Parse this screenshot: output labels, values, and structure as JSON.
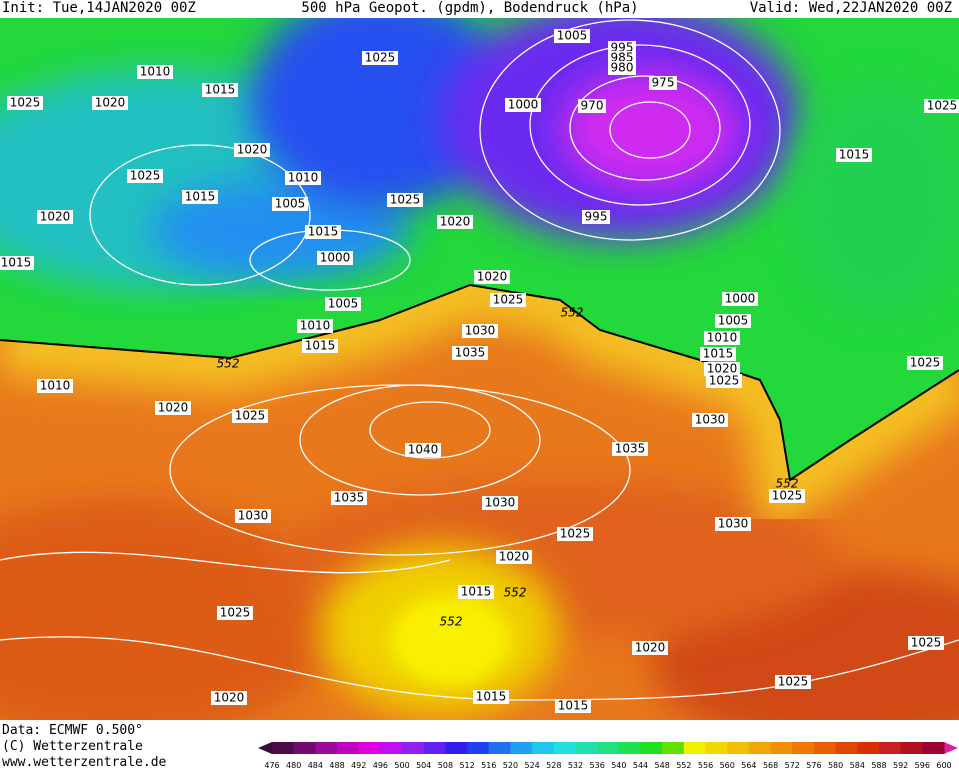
{
  "header": {
    "init": "Init: Tue,14JAN2020 00Z",
    "title": "500 hPa Geopot. (gpdm), Bodendruck (hPa)",
    "valid": "Valid: Wed,22JAN2020 00Z"
  },
  "footer": {
    "data": "Data: ECMWF   0.500°",
    "copyright": "(C) Wetterzentrale",
    "url": "www.wetterzentrale.de"
  },
  "legend": {
    "labels": [
      476,
      480,
      484,
      488,
      492,
      496,
      500,
      504,
      508,
      512,
      516,
      520,
      524,
      528,
      532,
      536,
      540,
      544,
      548,
      552,
      556,
      560,
      564,
      568,
      572,
      576,
      580,
      584,
      588,
      592,
      596,
      600
    ]
  },
  "isobar_labels": [
    1010,
    1025,
    1020,
    1015,
    1025,
    1005,
    995,
    985,
    980,
    975,
    970,
    1000,
    1025,
    1020,
    1015,
    1025,
    1015,
    1010,
    1005,
    1025,
    1020,
    995,
    1020,
    1015,
    1015,
    1000,
    1020,
    1025,
    552,
    1005,
    1010,
    1030,
    1000,
    1005,
    1010,
    1015,
    1035,
    552,
    1015,
    1020,
    1025,
    1025,
    1010,
    1020,
    1025,
    1030,
    1040,
    1035,
    1035,
    552,
    1025,
    1030,
    1030,
    1030,
    1025,
    1020,
    1015,
    552,
    552,
    1025,
    1020,
    1025,
    1025,
    1020,
    1015,
    1015
  ]
}
